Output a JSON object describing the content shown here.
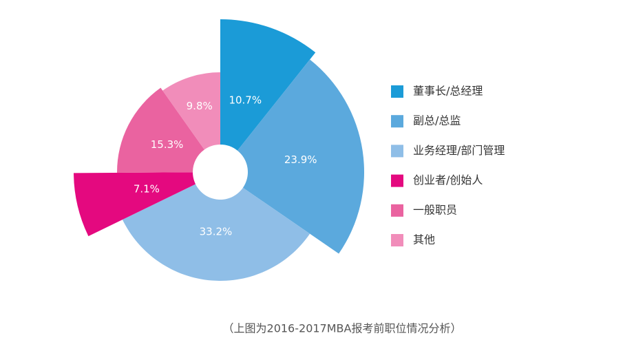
{
  "chart_data": {
    "type": "pie",
    "categories": [
      "董事长/总经理",
      "副总/总监",
      "业务经理/部门管理",
      "创业者/创始人",
      "一般职员",
      "其他"
    ],
    "values": [
      10.7,
      23.9,
      33.2,
      7.1,
      15.3,
      9.8
    ],
    "value_labels": [
      "10.7%",
      "23.9%",
      "33.2%",
      "7.1%",
      "15.3%",
      "9.8%"
    ],
    "colors": [
      "#1b9bd7",
      "#5ba9dd",
      "#8fbee7",
      "#e4097f",
      "#ea63a0",
      "#f18dba"
    ],
    "caption": "（上图为2016-2017MBA报考前职位情况分析）"
  }
}
